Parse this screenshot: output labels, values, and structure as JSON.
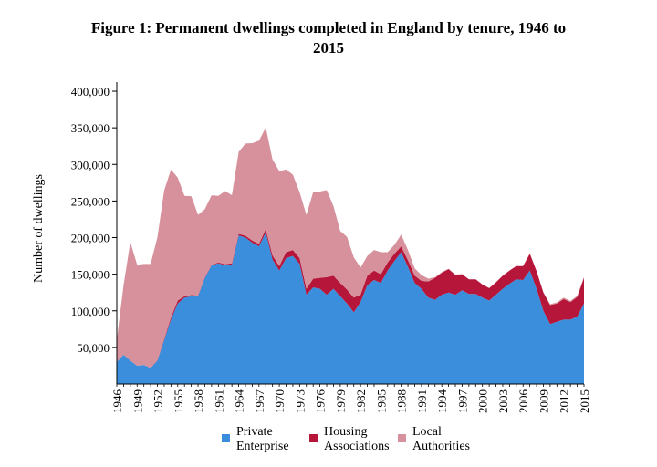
{
  "title": {
    "line1": "Figure 1: Permanent dwellings completed in England by tenure, 1946 to",
    "line2": "2015"
  },
  "colors": {
    "private": "#3b8edc",
    "housing": "#b5163a",
    "local": "#d6919c"
  },
  "chart_data": {
    "type": "area",
    "stacked": true,
    "title": "Figure 1: Permanent dwellings completed in England by tenure, 1946 to 2015",
    "xlabel": "",
    "ylabel": "Number of dwellings",
    "ylim": [
      0,
      410000
    ],
    "yticks": [
      50000,
      100000,
      150000,
      200000,
      250000,
      300000,
      350000,
      400000
    ],
    "ytick_labels": [
      "50,000",
      "100,000",
      "150,000",
      "200,000",
      "250,000",
      "300,000",
      "350,000",
      "400,000"
    ],
    "xticks": [
      "1946",
      "1949",
      "1952",
      "1955",
      "1958",
      "1961",
      "1964",
      "1967",
      "1970",
      "1973",
      "1976",
      "1979",
      "1982",
      "1985",
      "1988",
      "1991",
      "1994",
      "1997",
      "2000",
      "2003",
      "2006",
      "2009",
      "2012",
      "2015"
    ],
    "x": [
      1946,
      1947,
      1948,
      1949,
      1950,
      1951,
      1952,
      1953,
      1954,
      1955,
      1956,
      1957,
      1958,
      1959,
      1960,
      1961,
      1962,
      1963,
      1964,
      1965,
      1966,
      1967,
      1968,
      1969,
      1970,
      1971,
      1972,
      1973,
      1974,
      1975,
      1976,
      1977,
      1978,
      1979,
      1980,
      1981,
      1982,
      1983,
      1984,
      1985,
      1986,
      1987,
      1988,
      1989,
      1990,
      1991,
      1992,
      1993,
      1994,
      1995,
      1996,
      1997,
      1998,
      1999,
      2000,
      2001,
      2002,
      2003,
      2004,
      2005,
      2006,
      2007,
      2008,
      2009,
      2010,
      2011,
      2012,
      2013,
      2014,
      2015
    ],
    "grid": false,
    "legend_position": "bottom",
    "series": [
      {
        "name": "Private Enterprise",
        "values": [
          30000,
          40000,
          32000,
          25000,
          26000,
          22000,
          32000,
          60000,
          88000,
          110000,
          118000,
          120000,
          120000,
          145000,
          162000,
          165000,
          162000,
          163000,
          203000,
          200000,
          193000,
          188000,
          207000,
          170000,
          155000,
          172000,
          175000,
          164000,
          122000,
          132000,
          130000,
          122000,
          130000,
          120000,
          110000,
          98000,
          112000,
          135000,
          142000,
          138000,
          155000,
          168000,
          180000,
          160000,
          138000,
          130000,
          118000,
          115000,
          122000,
          125000,
          122000,
          128000,
          123000,
          123000,
          118000,
          114000,
          122000,
          130000,
          137000,
          143000,
          142000,
          155000,
          130000,
          100000,
          82000,
          85000,
          88000,
          88000,
          92000,
          110000
        ]
      },
      {
        "name": "Housing Associations",
        "values": [
          0,
          0,
          0,
          0,
          0,
          0,
          500,
          1500,
          3000,
          4000,
          2000,
          1500,
          1000,
          800,
          800,
          1000,
          1500,
          2000,
          2000,
          2500,
          3000,
          3500,
          4500,
          5500,
          6000,
          8000,
          8000,
          8000,
          8000,
          12000,
          15000,
          24000,
          18000,
          18000,
          19000,
          20000,
          10000,
          13000,
          13000,
          12000,
          11000,
          10000,
          8000,
          9000,
          10000,
          11000,
          22000,
          30000,
          30000,
          32000,
          27000,
          22000,
          20000,
          20000,
          18000,
          17000,
          17000,
          18000,
          18000,
          18000,
          19000,
          23000,
          24000,
          25000,
          26000,
          25000,
          28000,
          24000,
          27000,
          35000
        ]
      },
      {
        "name": "Local Authorities",
        "values": [
          30000,
          95000,
          162000,
          138000,
          138000,
          142000,
          168000,
          203000,
          202000,
          168000,
          137000,
          135000,
          110000,
          93000,
          95000,
          91000,
          100000,
          93000,
          112000,
          126000,
          133000,
          141000,
          139000,
          131000,
          130000,
          113000,
          103000,
          90000,
          101000,
          118000,
          118000,
          119000,
          95000,
          71000,
          72000,
          55000,
          37000,
          27000,
          28000,
          30000,
          14000,
          12000,
          16000,
          14000,
          10000,
          8000,
          4000,
          1000,
          1000,
          500,
          500,
          300,
          200,
          200,
          100,
          100,
          100,
          100,
          100,
          200,
          200,
          200,
          300,
          500,
          1000,
          1500,
          2000,
          1500,
          1500,
          1500
        ]
      }
    ]
  },
  "legend": [
    {
      "key": "private",
      "lines": [
        "Private",
        "Enterprise"
      ]
    },
    {
      "key": "housing",
      "lines": [
        "Housing",
        "Associations"
      ]
    },
    {
      "key": "local",
      "lines": [
        "Local",
        "Authorities"
      ]
    }
  ]
}
